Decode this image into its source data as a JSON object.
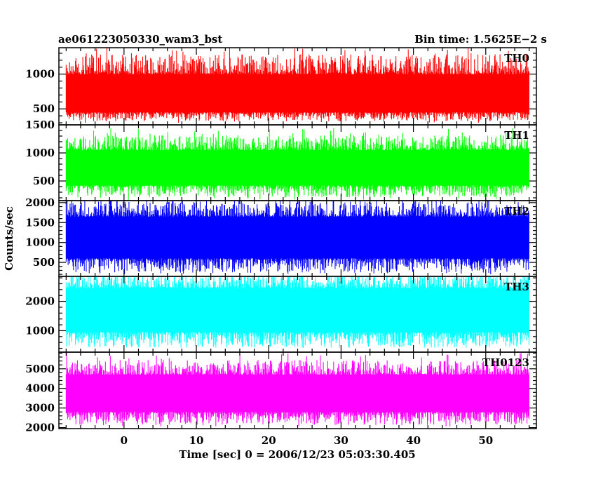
{
  "chart_data": {
    "type": "line",
    "title_left": "ae061223050330_wam3_bst",
    "title_right": "Bin time: 1.5625E−2 s",
    "xlabel": "Time [sec] 0 = 2006/12/23 05:03:30.405",
    "ylabel": "Counts/sec",
    "xlim": [
      -9,
      57
    ],
    "x_data_range": [
      -8,
      56
    ],
    "x_ticks": [
      0,
      10,
      20,
      30,
      40,
      50
    ],
    "grid": false,
    "panels": [
      {
        "name": "TH0",
        "color": "#ff0000",
        "ylim": [
          270,
          1380
        ],
        "y_ticks": [
          500,
          1000
        ],
        "y_ticks_minor_step": 100,
        "level": 620,
        "band": [
          450,
          1000
        ],
        "min_approx": 280,
        "max_approx": 1380
      },
      {
        "name": "TH1",
        "color": "#00ff00",
        "ylim": [
          150,
          1500
        ],
        "y_ticks": [
          500,
          1000,
          1500
        ],
        "y_ticks_minor_step": 100,
        "level": 700,
        "band": [
          420,
          1050
        ],
        "min_approx": 160,
        "max_approx": 1470
      },
      {
        "name": "TH2",
        "color": "#0000ff",
        "ylim": [
          150,
          2050
        ],
        "y_ticks": [
          500,
          1000,
          1500,
          2000
        ],
        "y_ticks_minor_step": 100,
        "level": 1100,
        "band": [
          600,
          1650
        ],
        "min_approx": 200,
        "max_approx": 2050
      },
      {
        "name": "TH3",
        "color": "#00ffff",
        "ylim": [
          270,
          2850
        ],
        "y_ticks": [
          1000,
          2000
        ],
        "y_ticks_minor_step": 200,
        "level": 1650,
        "band": [
          950,
          2450
        ],
        "min_approx": 400,
        "max_approx": 2850
      },
      {
        "name": "TH0123",
        "color": "#ff00ff",
        "ylim": [
          1950,
          5850
        ],
        "y_ticks": [
          2000,
          3000,
          4000,
          5000
        ],
        "y_ticks_minor_step": 200,
        "level": 3700,
        "band": [
          2800,
          4700
        ],
        "min_approx": 2050,
        "max_approx": 5850
      }
    ]
  }
}
